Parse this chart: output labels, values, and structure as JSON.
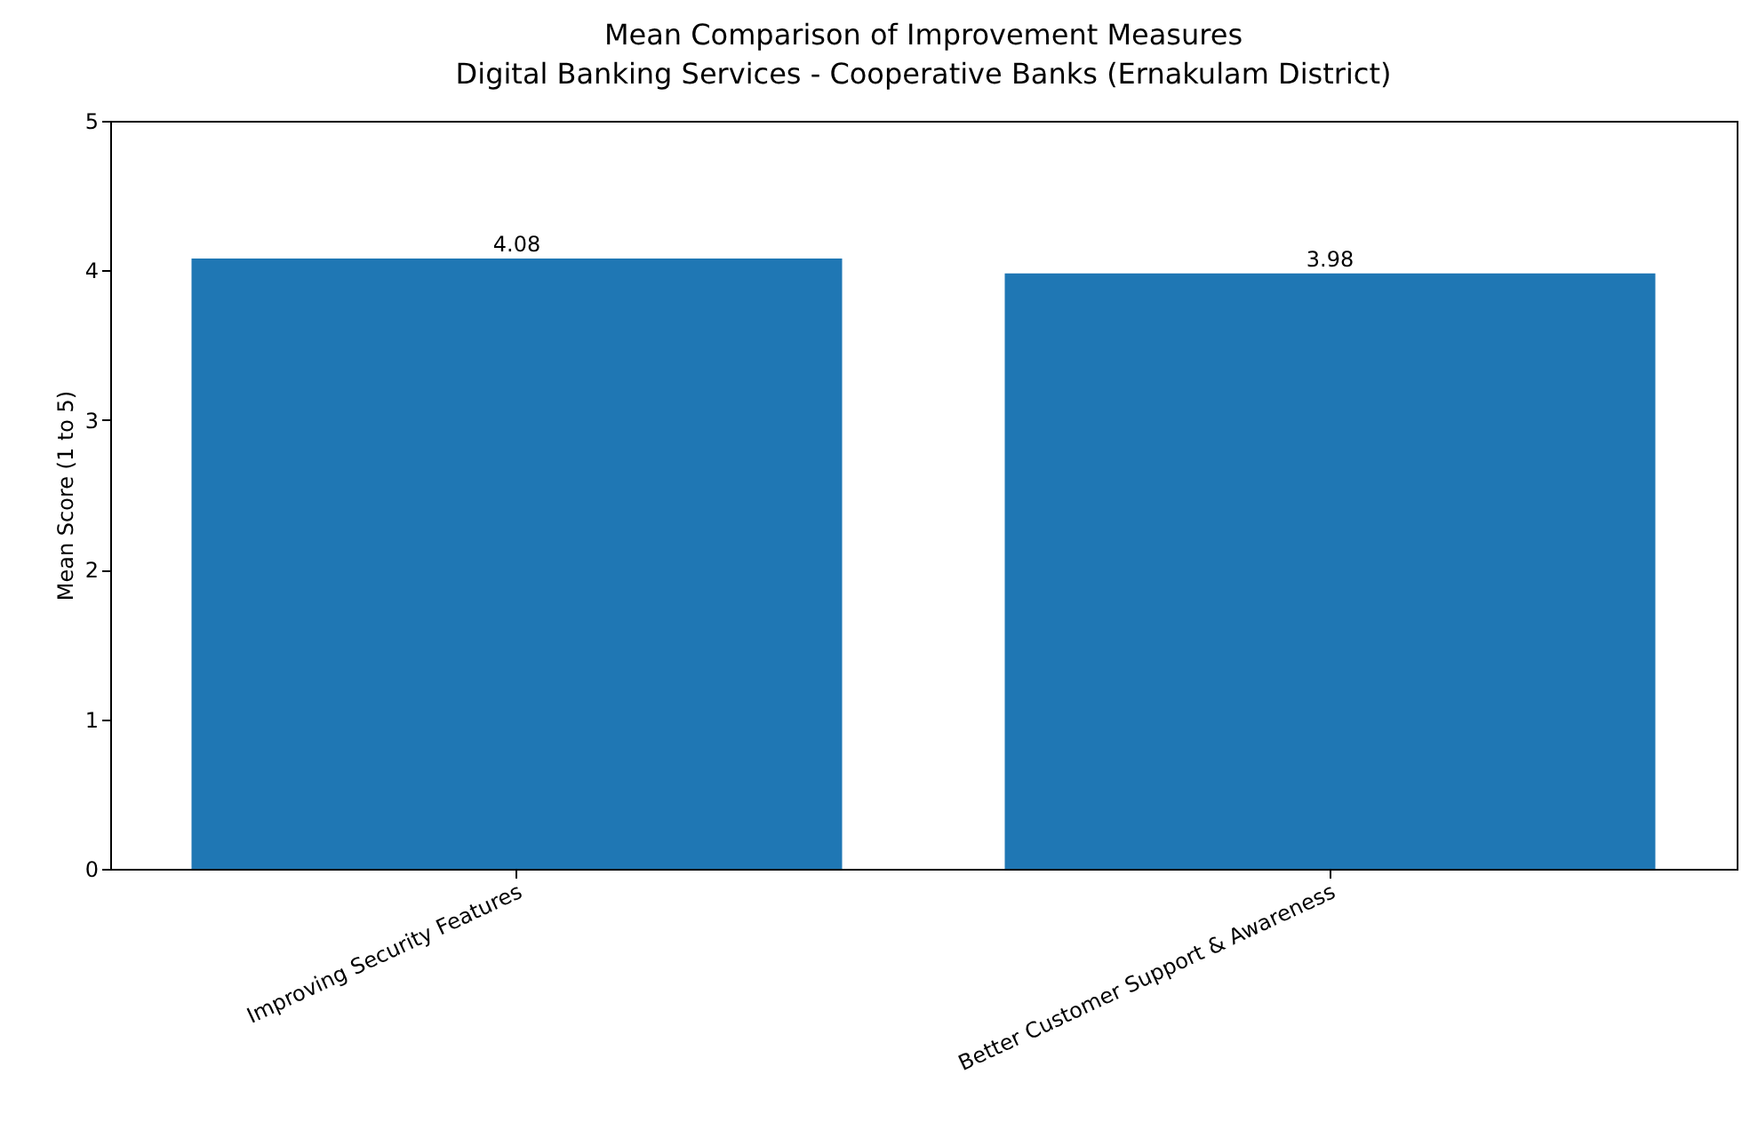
{
  "chart_data": {
    "type": "bar",
    "title": "Mean Comparison of Improvement Measures",
    "subtitle": "Digital Banking Services - Cooperative Banks (Ernakulam District)",
    "ylabel": "Mean Score (1 to 5)",
    "categories": [
      "Improving Security Features",
      "Better Customer Support & Awareness"
    ],
    "values": [
      4.08,
      3.98
    ],
    "color": "#1f77b4",
    "ylim": [
      0,
      5
    ],
    "yticks": [
      0,
      1,
      2,
      3,
      4,
      5
    ],
    "grid": false,
    "data_labels": true
  }
}
